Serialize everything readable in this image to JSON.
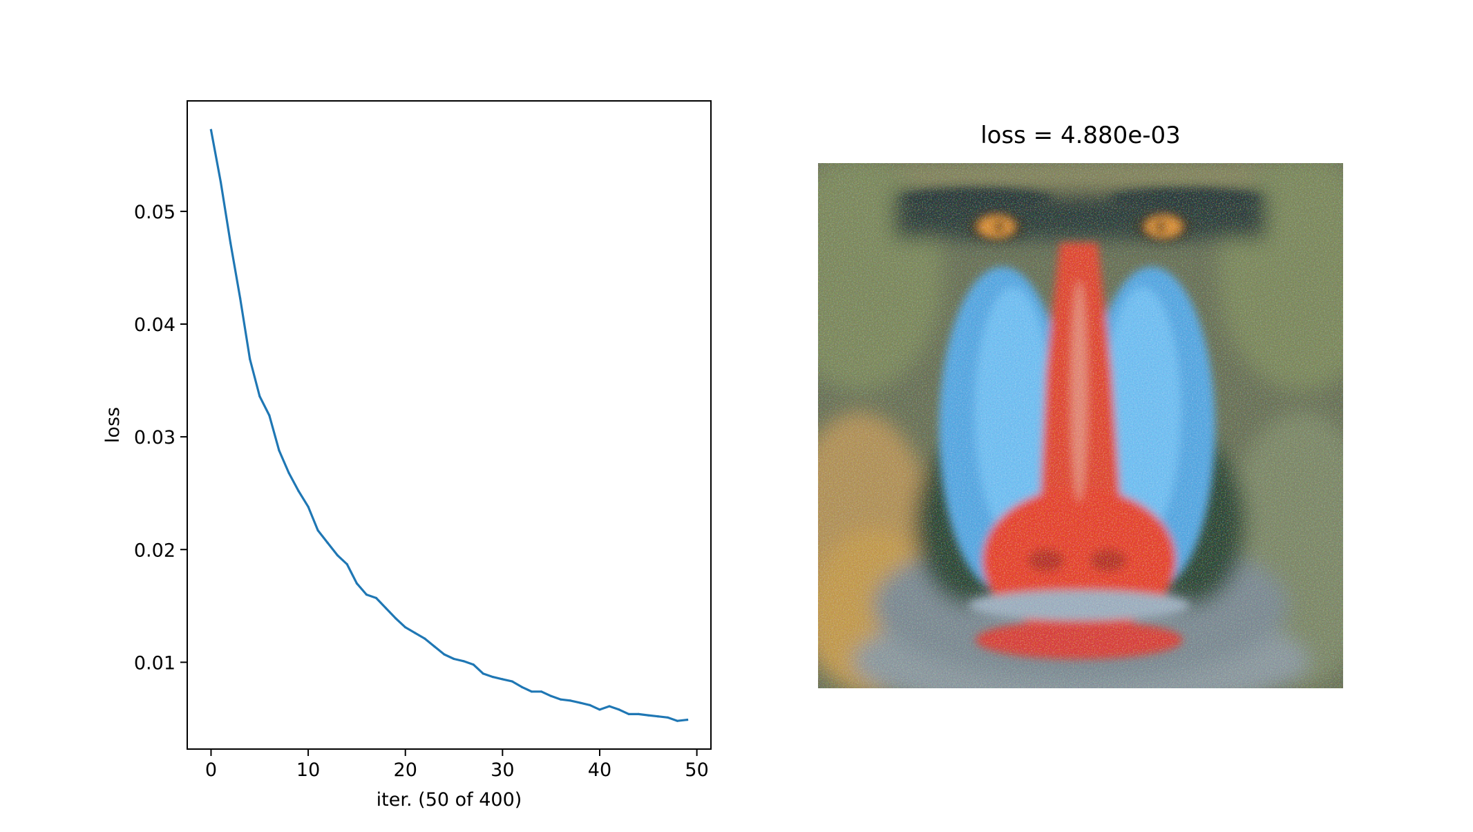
{
  "chart_data": [
    {
      "type": "line",
      "title": "",
      "xlabel": "iter. (50 of 400)",
      "ylabel": "loss",
      "xlim": [
        -2.45,
        51.45
      ],
      "ylim": [
        0.0023,
        0.0598
      ],
      "xticks": [
        0,
        10,
        20,
        30,
        40,
        50
      ],
      "xtick_labels": [
        "0",
        "10",
        "20",
        "30",
        "40",
        "50"
      ],
      "yticks": [
        0.01,
        0.02,
        0.03,
        0.04,
        0.05
      ],
      "ytick_labels": [
        "0.01",
        "0.02",
        "0.03",
        "0.04",
        "0.05"
      ],
      "grid": false,
      "legend": "none",
      "series": [
        {
          "color": "#1f77b4",
          "x": [
            0,
            1,
            2,
            3,
            4,
            5,
            6,
            7,
            8,
            9,
            10,
            11,
            12,
            13,
            14,
            15,
            16,
            17,
            18,
            19,
            20,
            21,
            22,
            23,
            24,
            25,
            26,
            27,
            28,
            29,
            30,
            31,
            32,
            33,
            34,
            35,
            36,
            37,
            38,
            39,
            40,
            41,
            42,
            43,
            44,
            45,
            46,
            47,
            48,
            49
          ],
          "y": [
            0.0572,
            0.0526,
            0.0472,
            0.0423,
            0.0369,
            0.0336,
            0.0319,
            0.0288,
            0.0268,
            0.0252,
            0.0238,
            0.0217,
            0.0206,
            0.0195,
            0.0187,
            0.017,
            0.016,
            0.0157,
            0.0148,
            0.0139,
            0.0131,
            0.0126,
            0.0121,
            0.0114,
            0.0107,
            0.0103,
            0.0101,
            0.0098,
            0.009,
            0.0087,
            0.0085,
            0.0083,
            0.0078,
            0.0074,
            0.0074,
            0.007,
            0.0067,
            0.0066,
            0.0064,
            0.0062,
            0.0058,
            0.0061,
            0.0058,
            0.0054,
            0.0054,
            0.0053,
            0.0052,
            0.0051,
            0.0048,
            0.0049
          ]
        }
      ]
    },
    {
      "type": "image",
      "title": "loss = 4.880e-03",
      "content": "reconstructed mandrill face image"
    }
  ]
}
